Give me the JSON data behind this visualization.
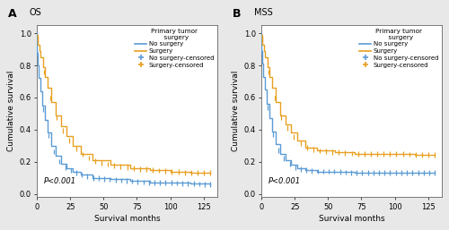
{
  "panel_A_title": "OS",
  "panel_B_title": "MSS",
  "panel_A_label": "A",
  "panel_B_label": "B",
  "xlabel": "Survival months",
  "ylabel": "Cumulative survival",
  "pvalue_text": "P<0.001",
  "legend_title": "Primary tumor\n  surgery",
  "legend_entries": [
    "No surgery",
    "Surgery",
    "No surgery-censored",
    "Surgery-censored"
  ],
  "color_no_surgery": "#5b9bd5",
  "color_surgery": "#e8a020",
  "xlim": [
    0,
    135
  ],
  "ylim": [
    -0.02,
    1.05
  ],
  "xticks": [
    0,
    25,
    50,
    75,
    100,
    125
  ],
  "yticks": [
    0.0,
    0.2,
    0.4,
    0.6,
    0.8,
    1.0
  ],
  "fig_bg": "#e8e8e8",
  "plot_bg": "#ffffff",
  "os_no_surg": [
    [
      0,
      1.0
    ],
    [
      0.3,
      0.88
    ],
    [
      0.8,
      0.8
    ],
    [
      1.5,
      0.72
    ],
    [
      2.5,
      0.64
    ],
    [
      4,
      0.55
    ],
    [
      6,
      0.46
    ],
    [
      8,
      0.38
    ],
    [
      11,
      0.3
    ],
    [
      14,
      0.24
    ],
    [
      18,
      0.19
    ],
    [
      22,
      0.16
    ],
    [
      27,
      0.14
    ],
    [
      33,
      0.12
    ],
    [
      42,
      0.1
    ],
    [
      55,
      0.09
    ],
    [
      70,
      0.08
    ],
    [
      85,
      0.07
    ],
    [
      100,
      0.07
    ],
    [
      115,
      0.065
    ],
    [
      130,
      0.06
    ]
  ],
  "os_surg": [
    [
      0,
      0.99
    ],
    [
      0.5,
      0.96
    ],
    [
      1,
      0.93
    ],
    [
      2,
      0.89
    ],
    [
      3,
      0.85
    ],
    [
      4.5,
      0.79
    ],
    [
      6,
      0.73
    ],
    [
      8,
      0.66
    ],
    [
      11,
      0.57
    ],
    [
      14,
      0.49
    ],
    [
      18,
      0.42
    ],
    [
      22,
      0.36
    ],
    [
      27,
      0.3
    ],
    [
      33,
      0.25
    ],
    [
      42,
      0.21
    ],
    [
      55,
      0.18
    ],
    [
      70,
      0.16
    ],
    [
      85,
      0.15
    ],
    [
      100,
      0.14
    ],
    [
      115,
      0.13
    ],
    [
      130,
      0.13
    ]
  ],
  "mss_no_surg": [
    [
      0,
      1.0
    ],
    [
      0.3,
      0.89
    ],
    [
      0.8,
      0.81
    ],
    [
      1.5,
      0.73
    ],
    [
      2.5,
      0.65
    ],
    [
      4,
      0.56
    ],
    [
      6,
      0.47
    ],
    [
      8,
      0.39
    ],
    [
      11,
      0.31
    ],
    [
      14,
      0.25
    ],
    [
      18,
      0.21
    ],
    [
      22,
      0.18
    ],
    [
      27,
      0.16
    ],
    [
      33,
      0.15
    ],
    [
      42,
      0.14
    ],
    [
      55,
      0.14
    ],
    [
      70,
      0.13
    ],
    [
      85,
      0.13
    ],
    [
      100,
      0.13
    ],
    [
      115,
      0.13
    ],
    [
      130,
      0.13
    ]
  ],
  "mss_surg": [
    [
      0,
      0.99
    ],
    [
      0.5,
      0.96
    ],
    [
      1,
      0.93
    ],
    [
      2,
      0.89
    ],
    [
      3,
      0.85
    ],
    [
      4.5,
      0.79
    ],
    [
      6,
      0.73
    ],
    [
      8,
      0.66
    ],
    [
      11,
      0.57
    ],
    [
      14,
      0.49
    ],
    [
      18,
      0.43
    ],
    [
      22,
      0.38
    ],
    [
      27,
      0.33
    ],
    [
      33,
      0.29
    ],
    [
      42,
      0.27
    ],
    [
      55,
      0.26
    ],
    [
      70,
      0.25
    ],
    [
      85,
      0.25
    ],
    [
      100,
      0.25
    ],
    [
      115,
      0.245
    ],
    [
      130,
      0.245
    ]
  ]
}
